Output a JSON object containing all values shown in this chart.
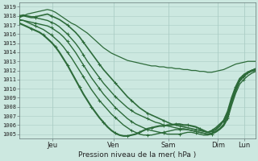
{
  "xlabel": "Pression niveau de la mer( hPa )",
  "bg_color": "#cce8e0",
  "grid_color": "#aaccc4",
  "line_color": "#2d6b3a",
  "ylim": [
    1004.5,
    1019.5
  ],
  "yticks": [
    1005,
    1006,
    1007,
    1008,
    1009,
    1010,
    1011,
    1012,
    1013,
    1014,
    1015,
    1016,
    1017,
    1018,
    1019
  ],
  "xlim": [
    0,
    1
  ],
  "day_positions": [
    0.14,
    0.4,
    0.63,
    0.84,
    0.95
  ],
  "day_labels": [
    "Jeu",
    "Ven",
    "Sam",
    "Dim",
    "Lun"
  ],
  "lines": [
    {
      "y": [
        1018.0,
        1018.1,
        1018.0,
        1017.9,
        1017.9,
        1018.0,
        1018.1,
        1018.2,
        1018.0,
        1017.8,
        1017.6,
        1017.3,
        1017.0,
        1016.6,
        1016.2,
        1015.7,
        1015.1,
        1014.5,
        1013.9,
        1013.3,
        1012.7,
        1012.1,
        1011.6,
        1011.1,
        1010.6,
        1010.1,
        1009.6,
        1009.1,
        1008.7,
        1008.3,
        1007.9,
        1007.6,
        1007.3,
        1007.1,
        1006.9,
        1006.7,
        1006.5,
        1006.3,
        1006.1,
        1006.0,
        1005.9,
        1005.8,
        1005.7,
        1005.6,
        1005.5,
        1005.4,
        1005.3,
        1005.2,
        1005.4,
        1005.7,
        1006.1,
        1006.5,
        1007.2,
        1008.5,
        1009.8,
        1011.0,
        1011.5,
        1011.8,
        1012.0,
        1012.2
      ],
      "lw": 1.2,
      "marker": true,
      "markevery": 4
    },
    {
      "y": [
        1017.5,
        1017.5,
        1017.4,
        1017.3,
        1017.2,
        1017.1,
        1017.0,
        1016.9,
        1016.7,
        1016.4,
        1016.1,
        1015.7,
        1015.2,
        1014.6,
        1014.0,
        1013.3,
        1012.6,
        1011.9,
        1011.2,
        1010.6,
        1010.0,
        1009.4,
        1008.9,
        1008.4,
        1007.9,
        1007.5,
        1007.1,
        1006.7,
        1006.4,
        1006.1,
        1005.9,
        1005.7,
        1005.5,
        1005.4,
        1005.3,
        1005.2,
        1005.1,
        1005.0,
        1005.0,
        1005.0,
        1005.0,
        1005.1,
        1005.2,
        1005.2,
        1005.1,
        1005.0,
        1004.9,
        1004.9,
        1005.0,
        1005.2,
        1005.5,
        1005.9,
        1006.7,
        1008.2,
        1009.5,
        1010.5,
        1011.0,
        1011.4,
        1011.7,
        1011.9
      ],
      "lw": 1.0,
      "marker": true,
      "markevery": 4
    },
    {
      "y": [
        1017.8,
        1018.0,
        1018.2,
        1018.3,
        1018.4,
        1018.5,
        1018.6,
        1018.7,
        1018.6,
        1018.4,
        1018.1,
        1017.8,
        1017.5,
        1017.2,
        1017.0,
        1016.7,
        1016.4,
        1016.1,
        1015.7,
        1015.3,
        1014.9,
        1014.5,
        1014.2,
        1013.9,
        1013.7,
        1013.5,
        1013.3,
        1013.1,
        1013.0,
        1012.9,
        1012.8,
        1012.7,
        1012.6,
        1012.5,
        1012.5,
        1012.4,
        1012.4,
        1012.3,
        1012.3,
        1012.2,
        1012.2,
        1012.1,
        1012.1,
        1012.0,
        1012.0,
        1011.9,
        1011.9,
        1011.8,
        1011.8,
        1011.9,
        1012.0,
        1012.1,
        1012.3,
        1012.5,
        1012.7,
        1012.8,
        1012.9,
        1013.0,
        1013.0,
        1013.0
      ],
      "lw": 0.9,
      "marker": false,
      "markevery": 4
    },
    {
      "y": [
        1018.0,
        1018.0,
        1017.9,
        1017.8,
        1017.8,
        1017.7,
        1017.6,
        1017.5,
        1017.3,
        1017.1,
        1016.8,
        1016.4,
        1016.0,
        1015.5,
        1015.0,
        1014.4,
        1013.7,
        1013.0,
        1012.4,
        1011.8,
        1011.2,
        1010.6,
        1010.1,
        1009.6,
        1009.1,
        1008.7,
        1008.3,
        1007.9,
        1007.6,
        1007.3,
        1007.1,
        1006.9,
        1006.7,
        1006.5,
        1006.3,
        1006.2,
        1006.0,
        1005.9,
        1005.8,
        1005.7,
        1005.6,
        1005.6,
        1005.5,
        1005.4,
        1005.3,
        1005.2,
        1005.1,
        1005.0,
        1005.1,
        1005.3,
        1005.6,
        1006.0,
        1006.9,
        1008.5,
        1009.8,
        1010.8,
        1011.3,
        1011.7,
        1012.0,
        1012.2
      ],
      "lw": 1.0,
      "marker": true,
      "markevery": 4
    },
    {
      "y": [
        1017.2,
        1017.0,
        1016.8,
        1016.6,
        1016.4,
        1016.2,
        1015.9,
        1015.5,
        1015.1,
        1014.6,
        1014.0,
        1013.3,
        1012.6,
        1011.8,
        1011.0,
        1010.2,
        1009.4,
        1008.7,
        1008.0,
        1007.4,
        1006.8,
        1006.3,
        1005.8,
        1005.4,
        1005.1,
        1004.9,
        1004.8,
        1004.8,
        1004.9,
        1005.0,
        1005.2,
        1005.4,
        1005.6,
        1005.7,
        1005.8,
        1005.9,
        1005.9,
        1006.0,
        1006.0,
        1006.1,
        1006.1,
        1006.0,
        1006.0,
        1005.9,
        1005.8,
        1005.6,
        1005.4,
        1005.2,
        1005.3,
        1005.5,
        1005.9,
        1006.5,
        1007.5,
        1009.0,
        1010.2,
        1011.1,
        1011.5,
        1011.8,
        1012.0,
        1012.1
      ],
      "lw": 1.5,
      "marker": true,
      "markevery": 3
    },
    {
      "y": [
        1017.6,
        1017.5,
        1017.3,
        1017.1,
        1016.9,
        1016.7,
        1016.5,
        1016.2,
        1015.9,
        1015.5,
        1015.1,
        1014.6,
        1014.0,
        1013.4,
        1012.7,
        1012.0,
        1011.3,
        1010.6,
        1009.9,
        1009.3,
        1008.7,
        1008.2,
        1007.7,
        1007.2,
        1006.8,
        1006.4,
        1006.0,
        1005.7,
        1005.4,
        1005.2,
        1005.0,
        1004.9,
        1004.9,
        1004.9,
        1005.0,
        1005.1,
        1005.2,
        1005.3,
        1005.4,
        1005.5,
        1005.5,
        1005.5,
        1005.5,
        1005.4,
        1005.3,
        1005.2,
        1005.1,
        1005.0,
        1005.1,
        1005.3,
        1005.6,
        1006.1,
        1007.2,
        1008.8,
        1010.0,
        1010.9,
        1011.4,
        1011.7,
        1011.9,
        1012.0
      ],
      "lw": 1.0,
      "marker": true,
      "markevery": 4
    }
  ]
}
